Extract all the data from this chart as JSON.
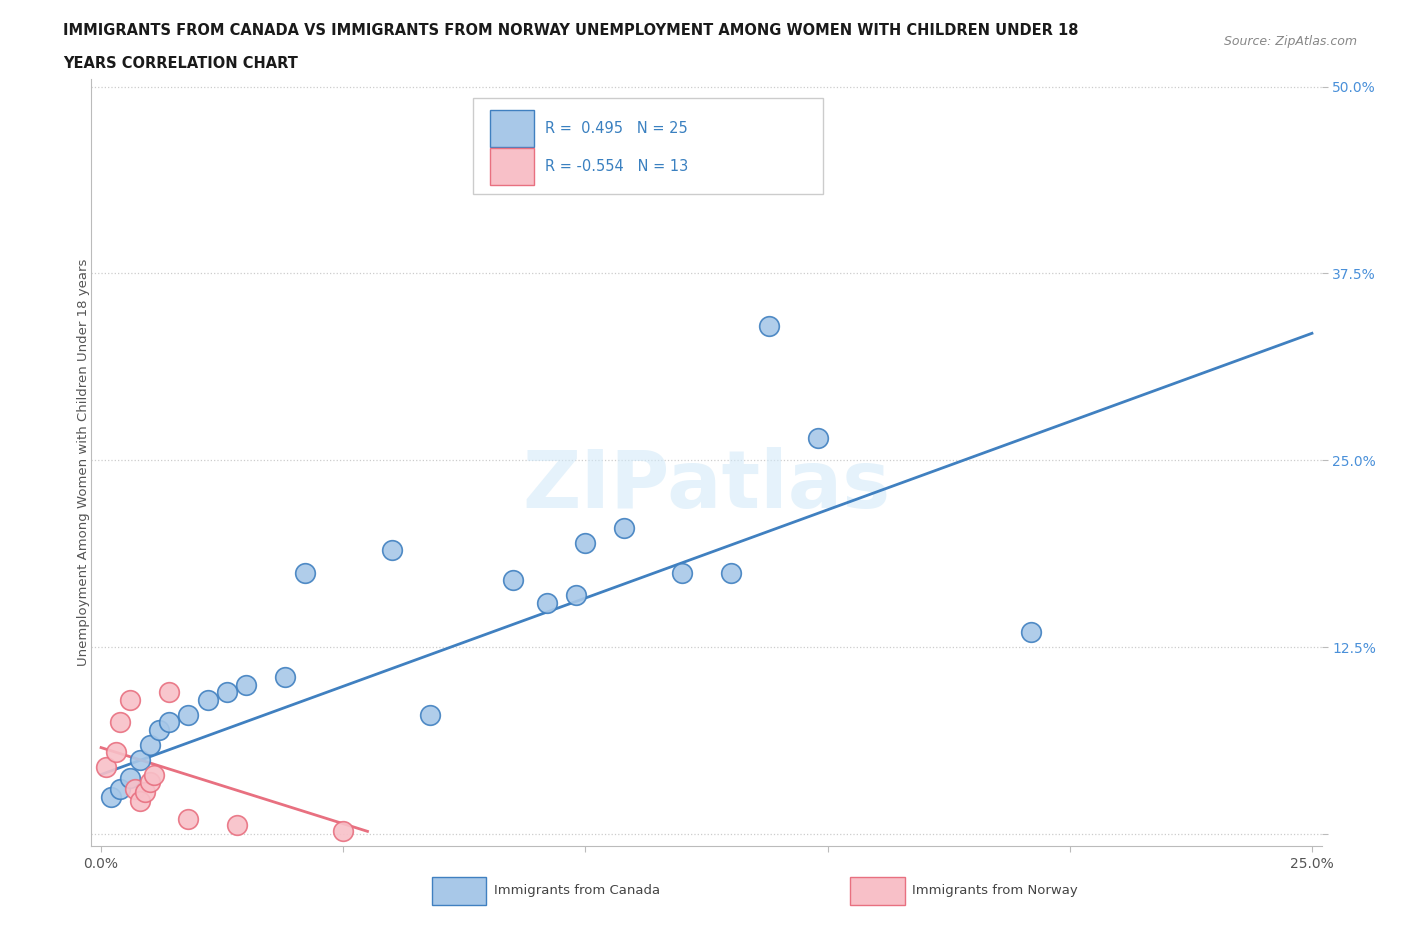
{
  "title_line1": "IMMIGRANTS FROM CANADA VS IMMIGRANTS FROM NORWAY UNEMPLOYMENT AMONG WOMEN WITH CHILDREN UNDER 18",
  "title_line2": "YEARS CORRELATION CHART",
  "source": "Source: ZipAtlas.com",
  "ylabel": "Unemployment Among Women with Children Under 18 years",
  "r_canada": 0.495,
  "n_canada": 25,
  "r_norway": -0.554,
  "n_norway": 13,
  "xlim": [
    -0.002,
    0.252
  ],
  "ylim": [
    -0.008,
    0.505
  ],
  "xticks": [
    0.0,
    0.05,
    0.1,
    0.15,
    0.2,
    0.25
  ],
  "yticks": [
    0.0,
    0.125,
    0.25,
    0.375,
    0.5
  ],
  "xtick_labels": [
    "0.0%",
    "",
    "",
    "",
    "",
    "25.0%"
  ],
  "ytick_labels": [
    "",
    "12.5%",
    "25.0%",
    "37.5%",
    "50.0%"
  ],
  "color_canada": "#a8c8e8",
  "color_canada_line": "#4080c0",
  "color_norway": "#f8c0c8",
  "color_norway_line": "#e87080",
  "watermark": "ZIPatlas",
  "canada_points_x": [
    0.002,
    0.004,
    0.006,
    0.008,
    0.01,
    0.012,
    0.014,
    0.018,
    0.022,
    0.026,
    0.03,
    0.038,
    0.042,
    0.06,
    0.068,
    0.085,
    0.092,
    0.098,
    0.1,
    0.108,
    0.12,
    0.13,
    0.138,
    0.148,
    0.192
  ],
  "canada_points_y": [
    0.025,
    0.03,
    0.038,
    0.05,
    0.06,
    0.07,
    0.075,
    0.08,
    0.09,
    0.095,
    0.1,
    0.105,
    0.175,
    0.19,
    0.08,
    0.17,
    0.155,
    0.16,
    0.195,
    0.205,
    0.175,
    0.175,
    0.34,
    0.265,
    0.135
  ],
  "norway_points_x": [
    0.001,
    0.003,
    0.004,
    0.006,
    0.007,
    0.008,
    0.009,
    0.01,
    0.011,
    0.014,
    0.018,
    0.028,
    0.05
  ],
  "norway_points_y": [
    0.045,
    0.055,
    0.075,
    0.09,
    0.03,
    0.022,
    0.028,
    0.035,
    0.04,
    0.095,
    0.01,
    0.006,
    0.002
  ],
  "canada_trendline_x0": 0.0,
  "canada_trendline_y0": 0.04,
  "canada_trendline_x1": 0.25,
  "canada_trendline_y1": 0.335,
  "norway_trendline_x0": 0.0,
  "norway_trendline_y0": 0.058,
  "norway_trendline_x1": 0.055,
  "norway_trendline_y1": 0.002
}
